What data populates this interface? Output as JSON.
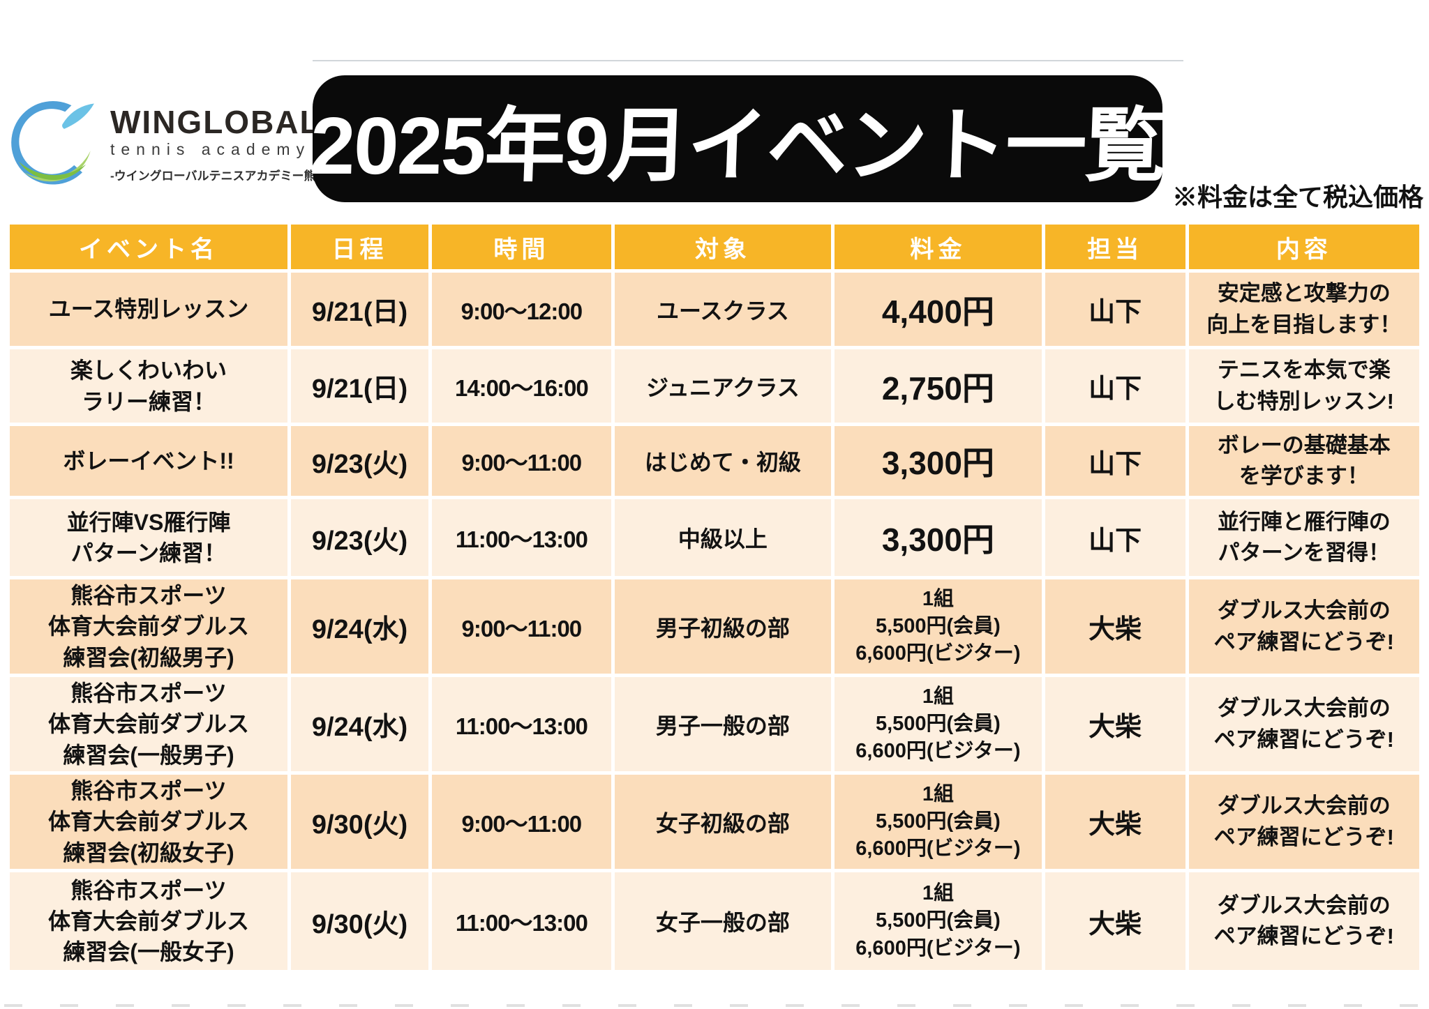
{
  "logo": {
    "name": "WINGLOBAL",
    "subtitle": "tennis academy",
    "tagline": "-ウイングローバルテニスアカデミー熊谷-"
  },
  "header": {
    "title": "2025年9月イベント一覧",
    "note": "※料金は全て税込価格"
  },
  "colors": {
    "header_bg": "#F7B527",
    "row_odd": "#FBDDBB",
    "row_even": "#FDEFDF",
    "title_bg": "#0A0A0A",
    "title_text": "#FFFFFF",
    "logo_blue": "#4FA0D8",
    "logo_light_blue": "#6BC2E6",
    "logo_green": "#7DBE42",
    "logo_light_green": "#A9D36B"
  },
  "table": {
    "columns": [
      "イベント名",
      "日程",
      "時間",
      "対象",
      "料金",
      "担当",
      "内容"
    ],
    "rows": [
      {
        "event": "ユース特別レッスン",
        "date": "9/21(日)",
        "time": "9:00〜12:00",
        "target": "ユースクラス",
        "fee": "4,400円",
        "staff": "山下",
        "desc": "安定感と攻撃力の\n向上を目指します！"
      },
      {
        "event": "楽しくわいわい\nラリー練習！",
        "date": "9/21(日)",
        "time": "14:00〜16:00",
        "target": "ジュニアクラス",
        "fee": "2,750円",
        "staff": "山下",
        "desc": "テニスを本気で楽\nしむ特別レッスン!"
      },
      {
        "event": "ボレーイベント!!",
        "date": "9/23(火)",
        "time": "9:00〜11:00",
        "target": "はじめて・初級",
        "fee": "3,300円",
        "staff": "山下",
        "desc": "ボレーの基礎基本\nを学びます！"
      },
      {
        "event": "並行陣VS雁行陣\nパターン練習！",
        "date": "9/23(火)",
        "time": "11:00〜13:00",
        "target": "中級以上",
        "fee": "3,300円",
        "staff": "山下",
        "desc": "並行陣と雁行陣の\nパターンを習得！"
      },
      {
        "event": "熊谷市スポーツ\n体育大会前ダブルス\n練習会(初級男子)",
        "date": "9/24(水)",
        "time": "9:00〜11:00",
        "target": "男子初級の部",
        "fee": "1組\n5,500円(会員)\n6,600円(ビジター)",
        "staff": "大柴",
        "desc": "ダブルス大会前の\nペア練習にどうぞ!"
      },
      {
        "event": "熊谷市スポーツ\n体育大会前ダブルス\n練習会(一般男子)",
        "date": "9/24(水)",
        "time": "11:00〜13:00",
        "target": "男子一般の部",
        "fee": "1組\n5,500円(会員)\n6,600円(ビジター)",
        "staff": "大柴",
        "desc": "ダブルス大会前の\nペア練習にどうぞ!"
      },
      {
        "event": "熊谷市スポーツ\n体育大会前ダブルス\n練習会(初級女子)",
        "date": "9/30(火)",
        "time": "9:00〜11:00",
        "target": "女子初級の部",
        "fee": "1組\n5,500円(会員)\n6,600円(ビジター)",
        "staff": "大柴",
        "desc": "ダブルス大会前の\nペア練習にどうぞ!"
      },
      {
        "event": "熊谷市スポーツ\n体育大会前ダブルス\n練習会(一般女子)",
        "date": "9/30(火)",
        "time": "11:00〜13:00",
        "target": "女子一般の部",
        "fee": "1組\n5,500円(会員)\n6,600円(ビジター)",
        "staff": "大柴",
        "desc": "ダブルス大会前の\nペア練習にどうぞ!"
      }
    ]
  }
}
